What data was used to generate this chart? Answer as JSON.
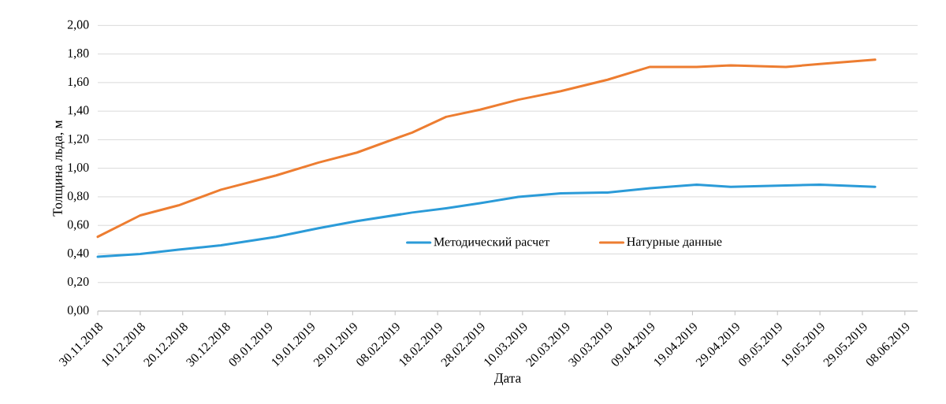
{
  "chart_data": {
    "type": "line",
    "xlabel": "Дата",
    "ylabel": "Толщина льда, м",
    "x": [
      "2018-11-30",
      "2018-12-10",
      "2018-12-19",
      "2018-12-29",
      "2019-01-11",
      "2019-01-21",
      "2019-01-30",
      "2019-02-12",
      "2019-02-20",
      "2019-02-28",
      "2019-03-09",
      "2019-03-19",
      "2019-03-30",
      "2019-04-09",
      "2019-04-20",
      "2019-04-28",
      "2019-05-11",
      "2019-05-19",
      "2019-06-01"
    ],
    "series": [
      {
        "name": "Методический расчет",
        "color": "#2b9bd8",
        "values": [
          0.38,
          0.4,
          0.43,
          0.46,
          0.52,
          0.58,
          0.63,
          0.69,
          0.72,
          0.755,
          0.8,
          0.825,
          0.83,
          0.86,
          0.885,
          0.87,
          0.88,
          0.885,
          0.87
        ]
      },
      {
        "name": "Натурные данные",
        "color": "#ed7d31",
        "values": [
          0.52,
          0.67,
          0.74,
          0.85,
          0.95,
          1.04,
          1.11,
          1.25,
          1.36,
          1.41,
          1.48,
          1.54,
          1.62,
          1.71,
          1.71,
          1.72,
          1.71,
          1.73,
          1.76
        ]
      }
    ],
    "xlim": [
      "2018-11-30",
      "2019-06-11"
    ],
    "xticks": [
      {
        "value": "2018-11-30",
        "label": "30.11.2018"
      },
      {
        "value": "2018-12-10",
        "label": "10.12.2018"
      },
      {
        "value": "2018-12-20",
        "label": "20.12.2018"
      },
      {
        "value": "2018-12-30",
        "label": "30.12.2018"
      },
      {
        "value": "2019-01-09",
        "label": "09.01.2019"
      },
      {
        "value": "2019-01-19",
        "label": "19.01.2019"
      },
      {
        "value": "2019-01-29",
        "label": "29.01.2019"
      },
      {
        "value": "2019-02-08",
        "label": "08.02.2019"
      },
      {
        "value": "2019-02-18",
        "label": "18.02.2019"
      },
      {
        "value": "2019-02-28",
        "label": "28.02.2019"
      },
      {
        "value": "2019-03-10",
        "label": "10.03.2019"
      },
      {
        "value": "2019-03-20",
        "label": "20.03.2019"
      },
      {
        "value": "2019-03-30",
        "label": "30.03.2019"
      },
      {
        "value": "2019-04-09",
        "label": "09.04.2019"
      },
      {
        "value": "2019-04-19",
        "label": "19.04.2019"
      },
      {
        "value": "2019-04-29",
        "label": "29.04.2019"
      },
      {
        "value": "2019-05-09",
        "label": "09.05.2019"
      },
      {
        "value": "2019-05-19",
        "label": "19.05.2019"
      },
      {
        "value": "2019-05-29",
        "label": "29.05.2019"
      },
      {
        "value": "2019-06-08",
        "label": "08.06.2019"
      }
    ],
    "ylim": [
      0,
      2
    ],
    "yticks": [
      {
        "value": 0,
        "label": "0,00"
      },
      {
        "value": 0.2,
        "label": "0,20"
      },
      {
        "value": 0.4,
        "label": "0,40"
      },
      {
        "value": 0.6,
        "label": "0,60"
      },
      {
        "value": 0.8,
        "label": "0,80"
      },
      {
        "value": 1.0,
        "label": "1,00"
      },
      {
        "value": 1.2,
        "label": "1,20"
      },
      {
        "value": 1.4,
        "label": "1,40"
      },
      {
        "value": 1.6,
        "label": "1,60"
      },
      {
        "value": 1.8,
        "label": "1,80"
      },
      {
        "value": 2.0,
        "label": "2,00"
      }
    ],
    "grid": "y",
    "legend": "bottom",
    "marker": "none",
    "line_style": "solid"
  }
}
